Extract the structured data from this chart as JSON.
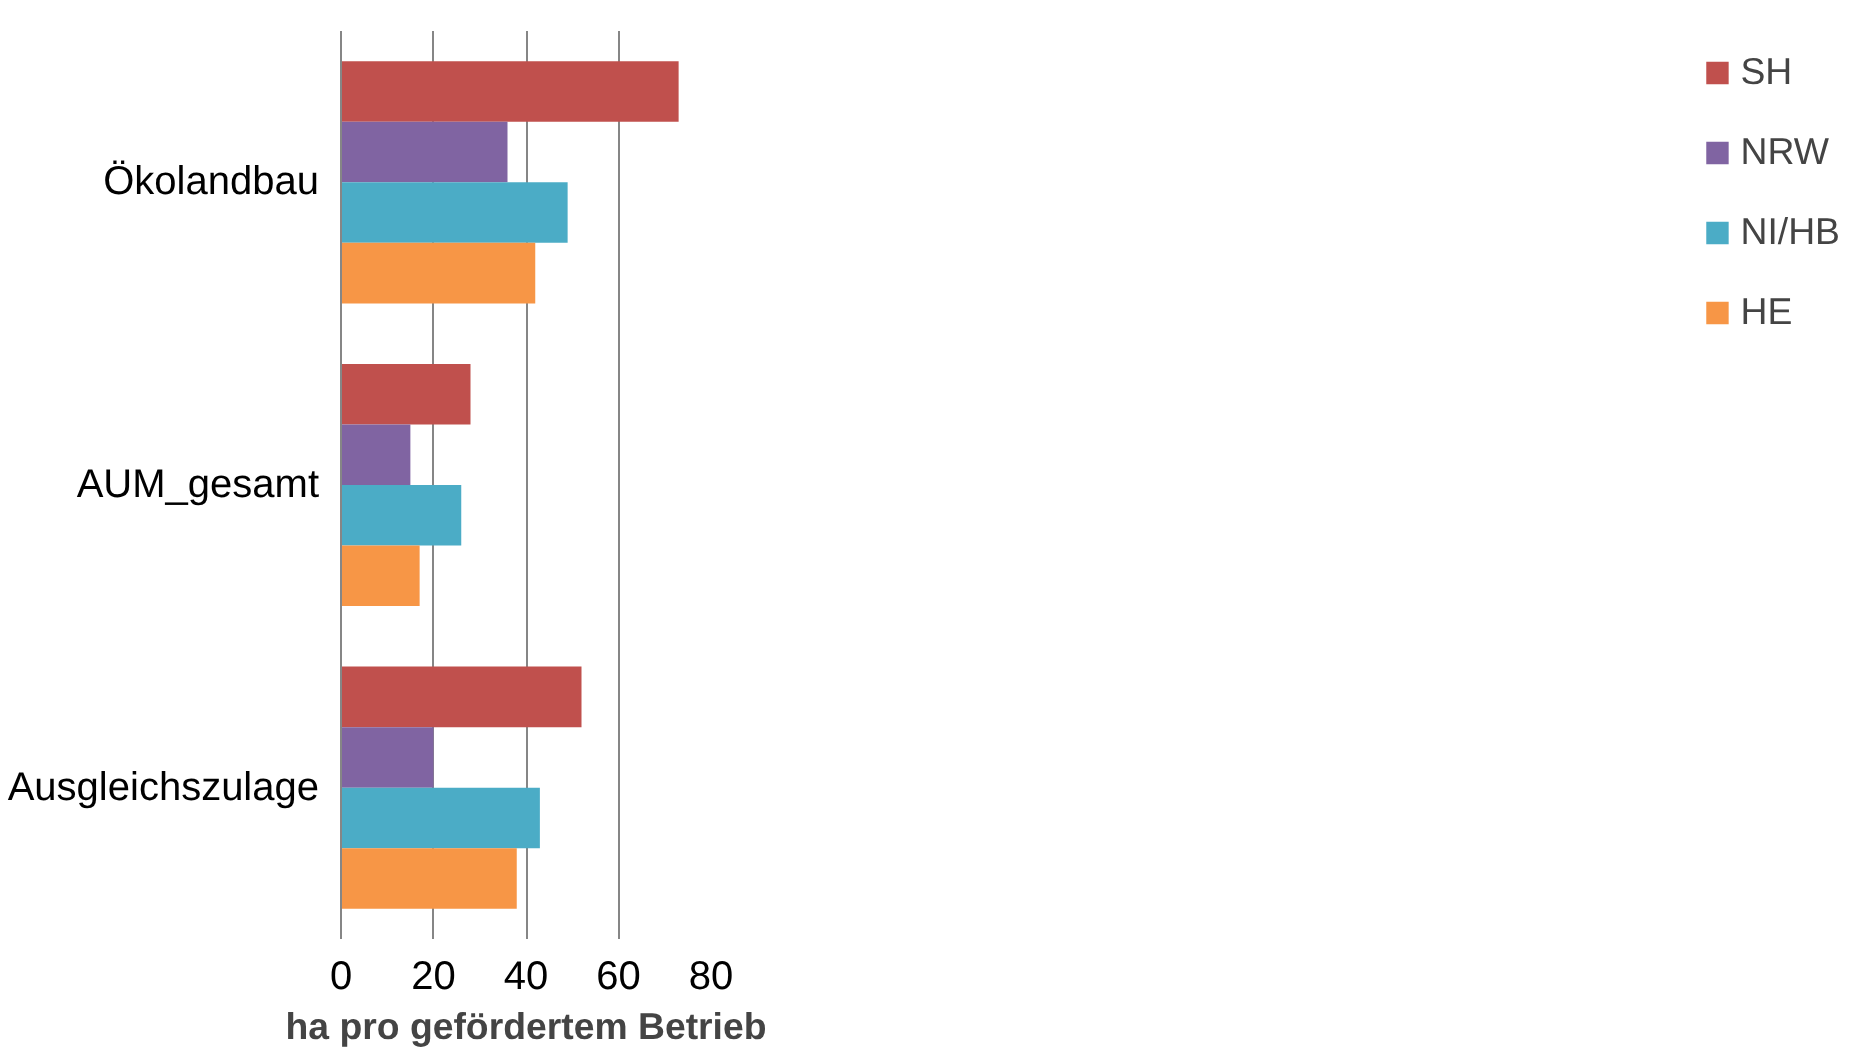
{
  "chart_data": {
    "type": "bar",
    "orientation": "horizontal",
    "xlabel": "ha pro gefördertem Betrieb",
    "categories": [
      "Ökolandbau",
      "AUM_gesamt",
      "Ausgleichszulage"
    ],
    "series": [
      {
        "name": "SH",
        "color": "#c0504d",
        "values": [
          73,
          28,
          52
        ]
      },
      {
        "name": "NRW",
        "color": "#8064a2",
        "values": [
          36,
          15,
          20
        ]
      },
      {
        "name": "NI/HB",
        "color": "#4bacc6",
        "values": [
          49,
          26,
          43
        ]
      },
      {
        "name": "HE",
        "color": "#f79646",
        "values": [
          42,
          17,
          38
        ]
      }
    ],
    "xlim": [
      0,
      80
    ],
    "xticks": [
      0,
      20,
      40,
      60,
      80
    ],
    "grid": "x",
    "legend": "right"
  }
}
